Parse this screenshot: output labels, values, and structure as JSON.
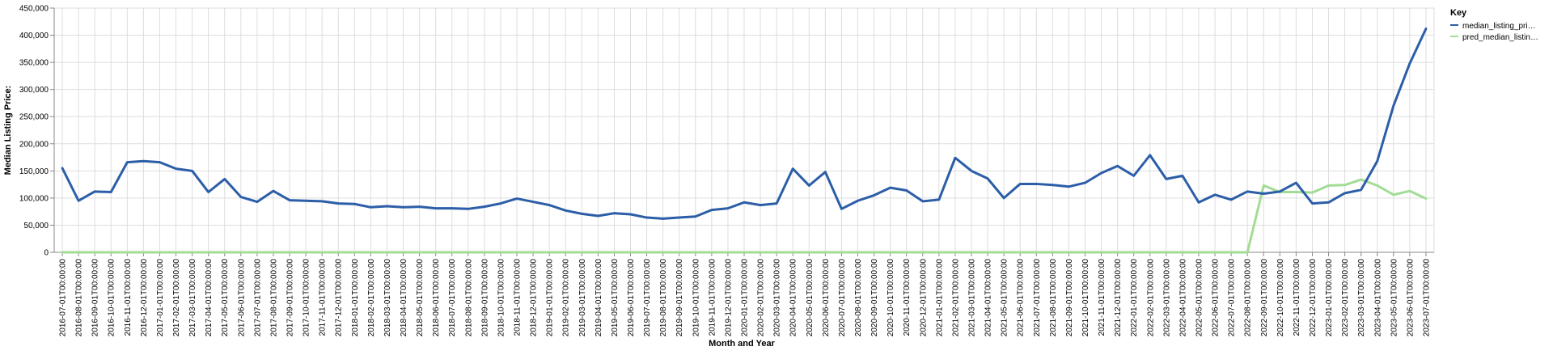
{
  "chart_data": {
    "type": "line",
    "ylabel": "Median Listing Price:",
    "xlabel": "Month and Year",
    "ylim": [
      0,
      450000
    ],
    "y_ticks": [
      0,
      50000,
      100000,
      150000,
      200000,
      250000,
      300000,
      350000,
      400000,
      450000
    ],
    "y_tick_labels": [
      "0",
      "50,000",
      "100,000",
      "150,000",
      "200,000",
      "250,000",
      "300,000",
      "350,000",
      "400,000",
      "450,000"
    ],
    "grid": true,
    "legend": {
      "title": "Key",
      "position": "top-right"
    },
    "x": [
      "2016-07-01T00:00:00",
      "2016-08-01T00:00:00",
      "2016-09-01T00:00:00",
      "2016-10-01T00:00:00",
      "2016-11-01T00:00:00",
      "2016-12-01T00:00:00",
      "2017-01-01T00:00:00",
      "2017-02-01T00:00:00",
      "2017-03-01T00:00:00",
      "2017-04-01T00:00:00",
      "2017-05-01T00:00:00",
      "2017-06-01T00:00:00",
      "2017-07-01T00:00:00",
      "2017-08-01T00:00:00",
      "2017-09-01T00:00:00",
      "2017-10-01T00:00:00",
      "2017-11-01T00:00:00",
      "2017-12-01T00:00:00",
      "2018-01-01T00:00:00",
      "2018-02-01T00:00:00",
      "2018-03-01T00:00:00",
      "2018-04-01T00:00:00",
      "2018-05-01T00:00:00",
      "2018-06-01T00:00:00",
      "2018-07-01T00:00:00",
      "2018-08-01T00:00:00",
      "2018-09-01T00:00:00",
      "2018-10-01T00:00:00",
      "2018-11-01T00:00:00",
      "2018-12-01T00:00:00",
      "2019-01-01T00:00:00",
      "2019-02-01T00:00:00",
      "2019-03-01T00:00:00",
      "2019-04-01T00:00:00",
      "2019-05-01T00:00:00",
      "2019-06-01T00:00:00",
      "2019-07-01T00:00:00",
      "2019-08-01T00:00:00",
      "2019-09-01T00:00:00",
      "2019-10-01T00:00:00",
      "2019-11-01T00:00:00",
      "2019-12-01T00:00:00",
      "2020-01-01T00:00:00",
      "2020-02-01T00:00:00",
      "2020-03-01T00:00:00",
      "2020-04-01T00:00:00",
      "2020-05-01T00:00:00",
      "2020-06-01T00:00:00",
      "2020-07-01T00:00:00",
      "2020-08-01T00:00:00",
      "2020-09-01T00:00:00",
      "2020-10-01T00:00:00",
      "2020-11-01T00:00:00",
      "2020-12-01T00:00:00",
      "2021-01-01T00:00:00",
      "2021-02-01T00:00:00",
      "2021-03-01T00:00:00",
      "2021-04-01T00:00:00",
      "2021-05-01T00:00:00",
      "2021-06-01T00:00:00",
      "2021-07-01T00:00:00",
      "2021-08-01T00:00:00",
      "2021-09-01T00:00:00",
      "2021-10-01T00:00:00",
      "2021-11-01T00:00:00",
      "2021-12-01T00:00:00",
      "2022-01-01T00:00:00",
      "2022-02-01T00:00:00",
      "2022-03-01T00:00:00",
      "2022-04-01T00:00:00",
      "2022-05-01T00:00:00",
      "2022-06-01T00:00:00",
      "2022-07-01T00:00:00",
      "2022-08-01T00:00:00",
      "2022-09-01T00:00:00",
      "2022-10-01T00:00:00",
      "2022-11-01T00:00:00",
      "2022-12-01T00:00:00",
      "2023-01-01T00:00:00",
      "2023-02-01T00:00:00",
      "2023-03-01T00:00:00",
      "2023-04-01T00:00:00",
      "2023-05-01T00:00:00",
      "2023-06-01T00:00:00",
      "2023-07-01T00:00:00"
    ],
    "series": [
      {
        "name": "median_listing_pri…",
        "color": "#2c5ea8",
        "values": [
          155000,
          95000,
          112000,
          111000,
          166000,
          168000,
          166000,
          154000,
          150000,
          111000,
          135000,
          102000,
          93000,
          113000,
          96000,
          95000,
          94000,
          90000,
          89000,
          83000,
          85000,
          83000,
          84000,
          81000,
          81000,
          80000,
          84000,
          90000,
          99000,
          93000,
          87000,
          77000,
          71000,
          67000,
          72000,
          70000,
          64000,
          62000,
          64000,
          66000,
          78000,
          81000,
          92000,
          87000,
          90000,
          154000,
          123000,
          148000,
          80000,
          95000,
          105000,
          119000,
          114000,
          94000,
          97000,
          174000,
          150000,
          136000,
          100000,
          126000,
          126000,
          124000,
          121000,
          128000,
          146000,
          159000,
          141000,
          179000,
          135000,
          141000,
          92000,
          106000,
          97000,
          112000,
          108000,
          112000,
          128000,
          90000,
          92000,
          109000,
          115000,
          168000,
          270000,
          348000,
          412000
        ]
      },
      {
        "name": "pred_median_listin…",
        "color": "#a2dc95",
        "values": [
          0,
          0,
          0,
          0,
          0,
          0,
          0,
          0,
          0,
          0,
          0,
          0,
          0,
          0,
          0,
          0,
          0,
          0,
          0,
          0,
          0,
          0,
          0,
          0,
          0,
          0,
          0,
          0,
          0,
          0,
          0,
          0,
          0,
          0,
          0,
          0,
          0,
          0,
          0,
          0,
          0,
          0,
          0,
          0,
          0,
          0,
          0,
          0,
          0,
          0,
          0,
          0,
          0,
          0,
          0,
          0,
          0,
          0,
          0,
          0,
          0,
          0,
          0,
          0,
          0,
          0,
          0,
          0,
          0,
          0,
          0,
          0,
          0,
          0,
          123000,
          111000,
          111000,
          110000,
          123000,
          124000,
          134000,
          123000,
          106000,
          113000,
          99000
        ]
      }
    ]
  }
}
